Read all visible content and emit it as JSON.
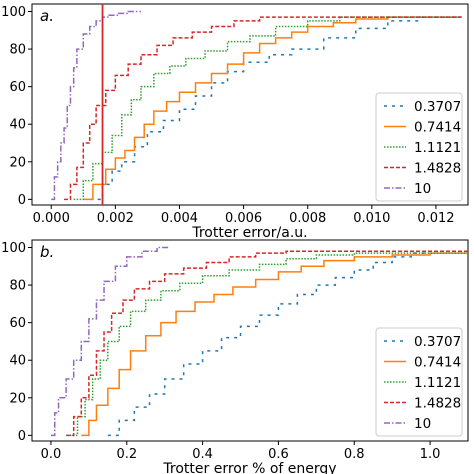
{
  "colors": {
    "s0": "#1f77b4",
    "s1": "#ff7f0e",
    "s2": "#2ca02c",
    "s3": "#d62728",
    "s4": "#9467bd",
    "vline": "#d62728"
  },
  "chart_data": [
    {
      "type": "line",
      "step": true,
      "panel_label": "a.",
      "xlabel": "Trotter error/a.u.",
      "ylabel": "",
      "xlim": [
        -0.0006,
        0.013
      ],
      "ylim": [
        -3,
        104
      ],
      "xticks": [
        0.0,
        0.002,
        0.004,
        0.006,
        0.008,
        0.01,
        0.012
      ],
      "xtick_labels": [
        "0.000",
        "0.002",
        "0.004",
        "0.006",
        "0.008",
        "0.010",
        "0.012"
      ],
      "yticks": [
        0,
        20,
        40,
        60,
        80,
        100
      ],
      "ytick_labels": [
        "0",
        "20",
        "40",
        "60",
        "80",
        "100"
      ],
      "vline": 0.0016,
      "legend_position": "lower-right",
      "series": [
        {
          "name": "0.3707",
          "color_key": "s0",
          "dash": "dashdense",
          "x": [
            0.0012,
            0.0016,
            0.0019,
            0.0022,
            0.0026,
            0.003,
            0.0035,
            0.004,
            0.0045,
            0.005,
            0.0055,
            0.006,
            0.0068,
            0.0075,
            0.0085,
            0.0095,
            0.0105,
            0.0115,
            0.0128
          ],
          "y": [
            0,
            8,
            15,
            20,
            28,
            36,
            42,
            48,
            55,
            62,
            68,
            73,
            77,
            80,
            86,
            91,
            95,
            97,
            97
          ]
        },
        {
          "name": "0.7414",
          "color_key": "s1",
          "dash": "solid",
          "x": [
            0.001,
            0.0013,
            0.0017,
            0.002,
            0.0023,
            0.0026,
            0.0029,
            0.0032,
            0.0036,
            0.004,
            0.0045,
            0.005,
            0.0055,
            0.006,
            0.0065,
            0.007,
            0.0075,
            0.008,
            0.0088,
            0.0095,
            0.0105,
            0.0115,
            0.0128
          ],
          "y": [
            0,
            8,
            16,
            22,
            26,
            33,
            40,
            47,
            52,
            57,
            62,
            67,
            72,
            78,
            83,
            86,
            89,
            92,
            94,
            96,
            97,
            97,
            97
          ]
        },
        {
          "name": "1.1121",
          "color_key": "s2",
          "dash": "dotted",
          "x": [
            0.0007,
            0.001,
            0.0013,
            0.0016,
            0.0019,
            0.0022,
            0.0025,
            0.0028,
            0.0032,
            0.0037,
            0.0042,
            0.0048,
            0.0055,
            0.0062,
            0.007,
            0.008,
            0.009,
            0.01,
            0.0115,
            0.0128
          ],
          "y": [
            0,
            10,
            19,
            25,
            34,
            45,
            53,
            60,
            67,
            71,
            75,
            79,
            84,
            87,
            92,
            95,
            97,
            97,
            97,
            97
          ]
        },
        {
          "name": "1.4828",
          "color_key": "s3",
          "dash": "dashed",
          "x": [
            0.0004,
            0.0006,
            0.0008,
            0.001,
            0.0012,
            0.0014,
            0.0017,
            0.002,
            0.0024,
            0.0028,
            0.0033,
            0.0038,
            0.0044,
            0.005,
            0.0057,
            0.0065,
            0.0075,
            0.0085,
            0.0095,
            0.0105,
            0.0115,
            0.0128
          ],
          "y": [
            0,
            8,
            17,
            30,
            40,
            50,
            58,
            66,
            72,
            77,
            82,
            86,
            89,
            92,
            95,
            97,
            97,
            97,
            97,
            97,
            97,
            97
          ]
        },
        {
          "name": "10",
          "color_key": "s4",
          "dash": "dashdot",
          "x": [
            0.0,
            0.0001,
            0.0002,
            0.0003,
            0.0004,
            0.0005,
            0.0006,
            0.0007,
            0.0008,
            0.001,
            0.0012,
            0.0014,
            0.0016,
            0.0018,
            0.0021,
            0.0024,
            0.0028
          ],
          "y": [
            0,
            12,
            20,
            30,
            38,
            50,
            60,
            70,
            80,
            88,
            92,
            95,
            97,
            98,
            99,
            100,
            100
          ]
        }
      ]
    },
    {
      "type": "line",
      "step": true,
      "panel_label": "b.",
      "xlabel": "Trotter error % of energy",
      "ylabel": "",
      "xlim": [
        -0.05,
        1.1
      ],
      "ylim": [
        -3,
        104
      ],
      "xticks": [
        0.0,
        0.2,
        0.4,
        0.6,
        0.8,
        1.0
      ],
      "xtick_labels": [
        "0.0",
        "0.2",
        "0.4",
        "0.6",
        "0.8",
        "1.0"
      ],
      "yticks": [
        0,
        20,
        40,
        60,
        80,
        100
      ],
      "ytick_labels": [
        "0",
        "20",
        "40",
        "60",
        "80",
        "100"
      ],
      "legend_position": "lower-right",
      "series": [
        {
          "name": "0.3707",
          "color_key": "s0",
          "dash": "dashdense",
          "x": [
            0.15,
            0.18,
            0.22,
            0.26,
            0.3,
            0.35,
            0.4,
            0.45,
            0.5,
            0.55,
            0.6,
            0.65,
            0.7,
            0.75,
            0.8,
            0.85,
            0.9,
            0.95,
            1.0
          ],
          "y": [
            0,
            8,
            15,
            22,
            30,
            38,
            45,
            52,
            58,
            64,
            70,
            75,
            80,
            84,
            88,
            92,
            95,
            97,
            97
          ]
        },
        {
          "name": "0.7414",
          "color_key": "s1",
          "dash": "solid",
          "x": [
            0.08,
            0.1,
            0.12,
            0.15,
            0.18,
            0.21,
            0.25,
            0.29,
            0.33,
            0.38,
            0.43,
            0.48,
            0.54,
            0.6,
            0.66,
            0.72,
            0.8,
            0.9,
            1.0,
            1.1
          ],
          "y": [
            0,
            8,
            16,
            25,
            35,
            45,
            53,
            60,
            66,
            71,
            75,
            79,
            83,
            87,
            90,
            93,
            95,
            96,
            97,
            97
          ]
        },
        {
          "name": "1.1121",
          "color_key": "s2",
          "dash": "dotted",
          "x": [
            0.05,
            0.07,
            0.09,
            0.11,
            0.13,
            0.15,
            0.18,
            0.21,
            0.25,
            0.29,
            0.34,
            0.4,
            0.47,
            0.55,
            0.62,
            0.7,
            0.8,
            0.9,
            1.0,
            1.1
          ],
          "y": [
            0,
            10,
            19,
            30,
            40,
            50,
            58,
            66,
            72,
            77,
            81,
            85,
            88,
            91,
            94,
            96,
            97,
            97,
            97,
            97
          ]
        },
        {
          "name": "1.4828",
          "color_key": "s3",
          "dash": "dashed",
          "x": [
            0.04,
            0.06,
            0.08,
            0.1,
            0.12,
            0.14,
            0.16,
            0.19,
            0.22,
            0.26,
            0.3,
            0.35,
            0.41,
            0.47,
            0.54,
            0.62,
            0.7,
            0.8,
            0.9,
            1.0,
            1.1
          ],
          "y": [
            0,
            10,
            20,
            32,
            45,
            55,
            65,
            72,
            78,
            82,
            86,
            89,
            92,
            95,
            97,
            98,
            98,
            98,
            98,
            98,
            98
          ]
        },
        {
          "name": "10",
          "color_key": "s4",
          "dash": "dashdot",
          "x": [
            0.0,
            0.01,
            0.02,
            0.04,
            0.06,
            0.08,
            0.1,
            0.12,
            0.14,
            0.17,
            0.2,
            0.24,
            0.28,
            0.31
          ],
          "y": [
            0,
            12,
            20,
            30,
            40,
            50,
            62,
            72,
            82,
            90,
            95,
            98,
            100,
            100
          ]
        }
      ]
    }
  ]
}
